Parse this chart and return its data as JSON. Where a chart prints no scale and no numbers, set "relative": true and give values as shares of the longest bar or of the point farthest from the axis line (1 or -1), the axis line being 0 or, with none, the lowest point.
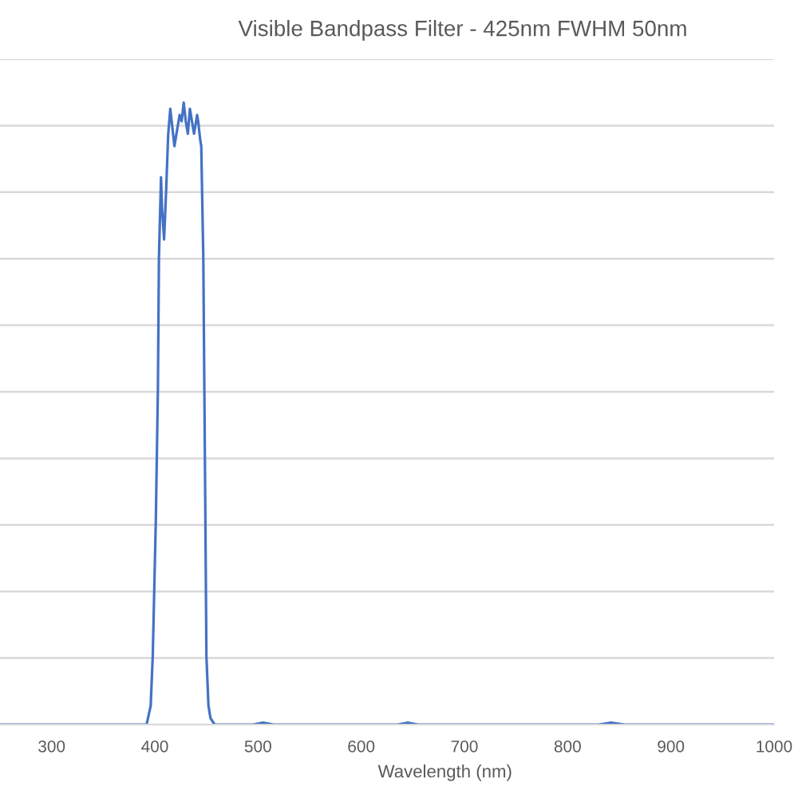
{
  "chart_data": {
    "type": "line",
    "title": "Visible Bandpass Filter - 425nm FWHM 50nm",
    "xlabel": "Wavelength (nm)",
    "x": [
      250,
      300,
      350,
      392,
      396,
      398,
      401,
      403,
      404,
      406,
      407,
      409,
      411,
      413,
      415,
      417,
      419,
      422,
      424,
      426,
      428,
      430,
      432,
      434,
      436,
      438,
      440,
      441,
      442,
      444,
      445,
      447,
      448,
      449,
      450,
      452,
      454,
      458,
      495,
      505,
      515,
      635,
      645,
      655,
      830,
      842,
      855,
      1000
    ],
    "series": [
      {
        "color": "#4472c4",
        "values": [
          0,
          0,
          0,
          0,
          0.03,
          0.11,
          0.33,
          0.54,
          0.75,
          0.88,
          0.83,
          0.78,
          0.86,
          0.95,
          0.99,
          0.96,
          0.93,
          0.96,
          0.98,
          0.97,
          1.0,
          0.97,
          0.95,
          0.99,
          0.97,
          0.95,
          0.97,
          0.98,
          0.97,
          0.94,
          0.93,
          0.75,
          0.54,
          0.33,
          0.11,
          0.03,
          0.01,
          0,
          0,
          0.003,
          0,
          0,
          0.003,
          0,
          0,
          0.003,
          0,
          0
        ]
      }
    ],
    "relative": true,
    "xlim": [
      250,
      1000
    ],
    "xticks": [
      300,
      400,
      500,
      600,
      700,
      800,
      900,
      1000
    ],
    "grid": "y",
    "tick_labels": "x",
    "line_style": "solid"
  }
}
